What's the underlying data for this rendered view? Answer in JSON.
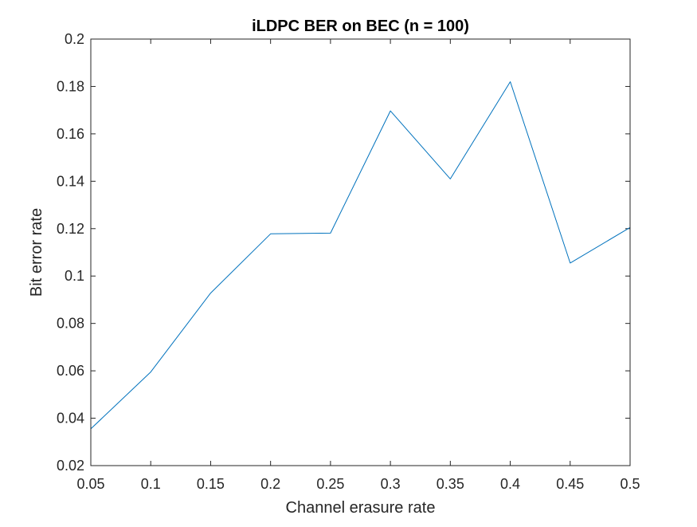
{
  "chart_data": {
    "type": "line",
    "title": "iLDPC BER on BEC (n = 100)",
    "xlabel": "Channel erasure rate",
    "ylabel": "Bit error rate",
    "xlim": [
      0.05,
      0.5
    ],
    "ylim": [
      0.02,
      0.2
    ],
    "xticks": [
      0.05,
      0.1,
      0.15,
      0.2,
      0.25,
      0.3,
      0.35,
      0.4,
      0.45,
      0.5
    ],
    "xtick_labels": [
      "0.05",
      "0.1",
      "0.15",
      "0.2",
      "0.25",
      "0.3",
      "0.35",
      "0.4",
      "0.45",
      "0.5"
    ],
    "yticks": [
      0.02,
      0.04,
      0.06,
      0.08,
      0.1,
      0.12,
      0.14,
      0.16,
      0.18,
      0.2
    ],
    "ytick_labels": [
      "0.02",
      "0.04",
      "0.06",
      "0.08",
      "0.1",
      "0.12",
      "0.14",
      "0.16",
      "0.18",
      "0.2"
    ],
    "grid": false,
    "series": [
      {
        "color": "#0072BD",
        "x": [
          0.05,
          0.1,
          0.15,
          0.2,
          0.25,
          0.3,
          0.35,
          0.4,
          0.45,
          0.5
        ],
        "y": [
          0.0355,
          0.0595,
          0.0928,
          0.1178,
          0.1181,
          0.1697,
          0.141,
          0.182,
          0.1055,
          0.1205
        ]
      }
    ]
  }
}
